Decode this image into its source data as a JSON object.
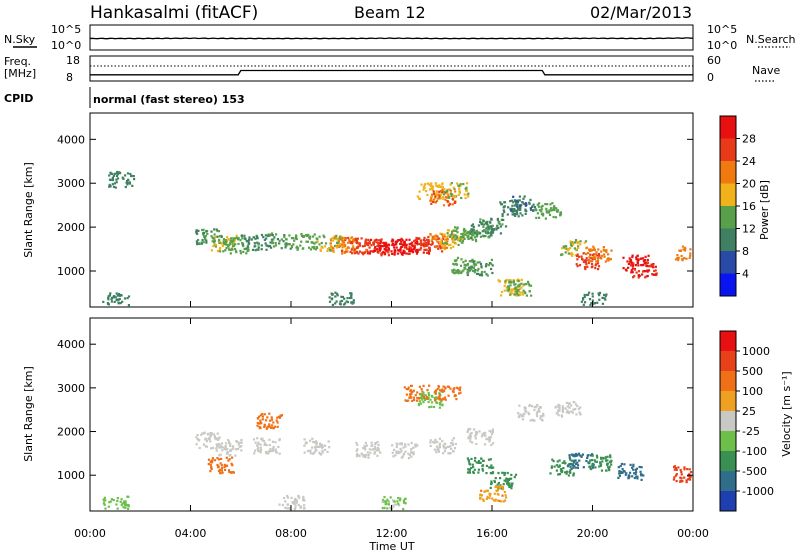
{
  "header": {
    "station": "Hankasalmi (fitACF)",
    "beam": "Beam 12",
    "date": "02/Mar/2013"
  },
  "noise_panel": {
    "left_label": "N.Sky",
    "right_label": "N.Search",
    "y_tick_top": "10^5",
    "y_tick_bottom": "10^0",
    "right_tick_top": "10^5",
    "right_tick_bottom": "10^0"
  },
  "freq_panel": {
    "left_label_line1": "Freq.",
    "left_label_line2": "[MHz]",
    "y_tick_top": "18",
    "y_tick_bottom": "8",
    "right_label": "Nave",
    "right_tick_top": "60",
    "right_tick_bottom": "0"
  },
  "cpid": {
    "label": "CPID",
    "mode": "normal (fast stereo) 153"
  },
  "x_axis": {
    "label": "Time UT",
    "ticks": [
      "00:00",
      "04:00",
      "08:00",
      "12:00",
      "16:00",
      "20:00",
      "00:00"
    ]
  },
  "power_panel": {
    "ylabel": "Slant Range [km]",
    "yticks": [
      "1000",
      "2000",
      "3000",
      "4000"
    ],
    "colorbar_label": "Power [dB]",
    "colorbar_ticks": [
      "4",
      "8",
      "12",
      "16",
      "20",
      "24",
      "28"
    ],
    "colors": [
      "#0a14f0",
      "#2a4aa8",
      "#3f7f62",
      "#58a14a",
      "#f2b21c",
      "#f07a10",
      "#e83a18",
      "#e81010"
    ]
  },
  "velocity_panel": {
    "ylabel": "Velocity [m s⁻¹]",
    "range_label": "Slant Range [km]",
    "yticks": [
      "1000",
      "2000",
      "3000",
      "4000"
    ],
    "colorbar_ticks": [
      "1000",
      "500",
      "100",
      "25",
      "-25",
      "-100",
      "-500",
      "-1000"
    ],
    "colors": [
      "#1e3fb0",
      "#2f6d8a",
      "#3a8f52",
      "#6cc04a",
      "#c8c8c4",
      "#f0a020",
      "#f07018",
      "#e84018",
      "#e81010"
    ]
  },
  "chart_data": [
    {
      "type": "line",
      "title": "N.Sky / N.Search",
      "x": [
        0,
        2,
        4,
        6,
        8,
        10,
        12,
        14,
        16,
        18,
        20,
        22,
        24
      ],
      "series": [
        {
          "name": "N.Sky",
          "values": [
            2.3,
            2.3,
            2.35,
            2.3,
            2.3,
            2.3,
            2.35,
            2.3,
            2.3,
            2.3,
            2.35,
            2.3,
            2.4
          ]
        }
      ],
      "ylim": [
        0,
        5
      ],
      "xlabel": "Time UT"
    },
    {
      "type": "line",
      "title": "Freq. / Nave",
      "x": [
        0,
        0.5,
        1,
        2,
        3,
        4,
        5,
        5.9,
        6,
        8,
        10,
        12,
        14,
        16,
        18,
        18.1,
        20,
        22,
        24
      ],
      "series": [
        {
          "name": "Freq.",
          "values": [
            10.5,
            10.5,
            10.5,
            10.5,
            10.5,
            10.5,
            10.5,
            10.5,
            12.2,
            12.2,
            12.2,
            12.2,
            12.2,
            12.2,
            12.2,
            10.5,
            10.5,
            10.5,
            10.5
          ]
        },
        {
          "name": "Nave",
          "values": [
            36,
            36,
            36,
            36,
            36,
            36,
            36,
            36,
            36,
            36,
            36,
            36,
            36,
            36,
            36,
            36,
            36,
            36,
            36
          ]
        }
      ],
      "xlabel": "Time UT",
      "ylim": [
        8,
        18
      ]
    },
    {
      "type": "heatmap",
      "title": "Power",
      "xlabel": "Time UT",
      "ylabel": "Slant Range [km]",
      "xlim": [
        0,
        24
      ],
      "ylim": [
        180,
        4600
      ],
      "colorbar_label": "Power [dB]",
      "points": [
        {
          "t": 4.7,
          "r": 1820,
          "v": 10
        },
        {
          "t": 5.3,
          "r": 1650,
          "v": 14
        },
        {
          "t": 5.8,
          "r": 1600,
          "v": 12
        },
        {
          "t": 6.5,
          "r": 1680,
          "v": 9
        },
        {
          "t": 7.5,
          "r": 1700,
          "v": 10
        },
        {
          "t": 8.5,
          "r": 1690,
          "v": 12
        },
        {
          "t": 9.5,
          "r": 1650,
          "v": 14
        },
        {
          "t": 10.0,
          "r": 1620,
          "v": 18
        },
        {
          "t": 10.5,
          "r": 1600,
          "v": 22
        },
        {
          "t": 11.0,
          "r": 1580,
          "v": 24
        },
        {
          "t": 11.5,
          "r": 1560,
          "v": 26
        },
        {
          "t": 12.0,
          "r": 1560,
          "v": 28
        },
        {
          "t": 12.5,
          "r": 1580,
          "v": 28
        },
        {
          "t": 13.0,
          "r": 1600,
          "v": 26
        },
        {
          "t": 13.5,
          "r": 1640,
          "v": 24
        },
        {
          "t": 14.0,
          "r": 1700,
          "v": 18
        },
        {
          "t": 14.5,
          "r": 1780,
          "v": 14
        },
        {
          "t": 15.0,
          "r": 1850,
          "v": 12
        },
        {
          "t": 15.5,
          "r": 1950,
          "v": 10
        },
        {
          "t": 16.0,
          "r": 2050,
          "v": 9
        },
        {
          "t": 13.5,
          "r": 2850,
          "v": 16
        },
        {
          "t": 14.0,
          "r": 2700,
          "v": 22
        },
        {
          "t": 14.5,
          "r": 2850,
          "v": 14
        },
        {
          "t": 16.8,
          "r": 2450,
          "v": 8
        },
        {
          "t": 17.2,
          "r": 2550,
          "v": 7
        },
        {
          "t": 14.8,
          "r": 1150,
          "v": 12
        },
        {
          "t": 15.5,
          "r": 1100,
          "v": 10
        },
        {
          "t": 16.7,
          "r": 650,
          "v": 16
        },
        {
          "t": 17.0,
          "r": 620,
          "v": 12
        },
        {
          "t": 18.2,
          "r": 2400,
          "v": 12
        },
        {
          "t": 19.2,
          "r": 1550,
          "v": 14
        },
        {
          "t": 19.8,
          "r": 1250,
          "v": 24
        },
        {
          "t": 20.2,
          "r": 1400,
          "v": 20
        },
        {
          "t": 21.7,
          "r": 1200,
          "v": 28
        },
        {
          "t": 22.0,
          "r": 1050,
          "v": 26
        },
        {
          "t": 23.8,
          "r": 1400,
          "v": 20
        },
        {
          "t": 1.2,
          "r": 3100,
          "v": 8
        },
        {
          "t": 1.0,
          "r": 350,
          "v": 8
        },
        {
          "t": 10.0,
          "r": 350,
          "v": 8
        },
        {
          "t": 20.0,
          "r": 350,
          "v": 8
        }
      ]
    },
    {
      "type": "heatmap",
      "title": "Velocity",
      "xlabel": "Time UT",
      "ylabel": "Slant Range [km]",
      "xlim": [
        0,
        24
      ],
      "ylim": [
        180,
        4600
      ],
      "colorbar_label": "Velocity [m s⁻¹]",
      "points": [
        {
          "t": 4.7,
          "r": 1820,
          "v": 0
        },
        {
          "t": 5.5,
          "r": 1650,
          "v": 0
        },
        {
          "t": 7.0,
          "r": 1700,
          "v": 0
        },
        {
          "t": 9.0,
          "r": 1680,
          "v": 0
        },
        {
          "t": 11.0,
          "r": 1600,
          "v": 0
        },
        {
          "t": 12.5,
          "r": 1580,
          "v": 0
        },
        {
          "t": 14.0,
          "r": 1700,
          "v": 0
        },
        {
          "t": 15.5,
          "r": 1900,
          "v": 0
        },
        {
          "t": 17.5,
          "r": 2450,
          "v": 0
        },
        {
          "t": 19.0,
          "r": 2550,
          "v": 0
        },
        {
          "t": 13.0,
          "r": 2900,
          "v": -200
        },
        {
          "t": 13.5,
          "r": 2750,
          "v": 50
        },
        {
          "t": 14.2,
          "r": 2900,
          "v": -150
        },
        {
          "t": 7.1,
          "r": 2250,
          "v": -300
        },
        {
          "t": 5.2,
          "r": 1250,
          "v": -250
        },
        {
          "t": 15.5,
          "r": 1250,
          "v": 150
        },
        {
          "t": 16.4,
          "r": 900,
          "v": 200
        },
        {
          "t": 16.0,
          "r": 600,
          "v": -80
        },
        {
          "t": 18.7,
          "r": 1200,
          "v": 300
        },
        {
          "t": 19.5,
          "r": 1350,
          "v": 600
        },
        {
          "t": 20.2,
          "r": 1300,
          "v": 200
        },
        {
          "t": 21.5,
          "r": 1100,
          "v": 800
        },
        {
          "t": 23.7,
          "r": 1050,
          "v": -600
        },
        {
          "t": 1.0,
          "r": 350,
          "v": 60
        },
        {
          "t": 8.0,
          "r": 380,
          "v": 0
        },
        {
          "t": 12.0,
          "r": 350,
          "v": 40
        }
      ]
    }
  ]
}
